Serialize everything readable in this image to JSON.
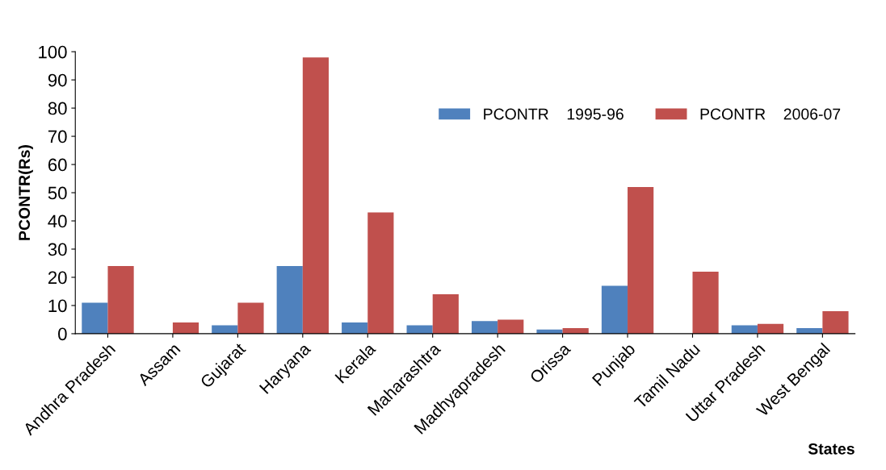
{
  "chart_data": {
    "type": "bar",
    "xlabel": "States",
    "ylabel": "PCONTR(Rs)",
    "categories": [
      "Andhra Pradesh",
      "Assam",
      "Gujarat",
      "Haryana",
      "Kerala",
      "Maharashtra",
      "Madhyapradesh",
      "Orissa",
      "Punjab",
      "Tamil Nadu",
      "Uttar Pradesh",
      "West Bengal"
    ],
    "series": [
      {
        "name": "PCONTR    1995-96",
        "color": "#4f81bd",
        "values": [
          11,
          null,
          3,
          24,
          4,
          3,
          4.5,
          1.5,
          17,
          null,
          3,
          2
        ]
      },
      {
        "name": "PCONTR    2006-07",
        "color": "#c0504d",
        "values": [
          24,
          4,
          11,
          98,
          43,
          14,
          5,
          2,
          52,
          22,
          3.5,
          8
        ]
      }
    ],
    "ylim": [
      0,
      100
    ],
    "yticks": [
      0,
      10,
      20,
      30,
      40,
      50,
      60,
      70,
      80,
      90,
      100
    ],
    "grid": false,
    "legend": "top right"
  }
}
